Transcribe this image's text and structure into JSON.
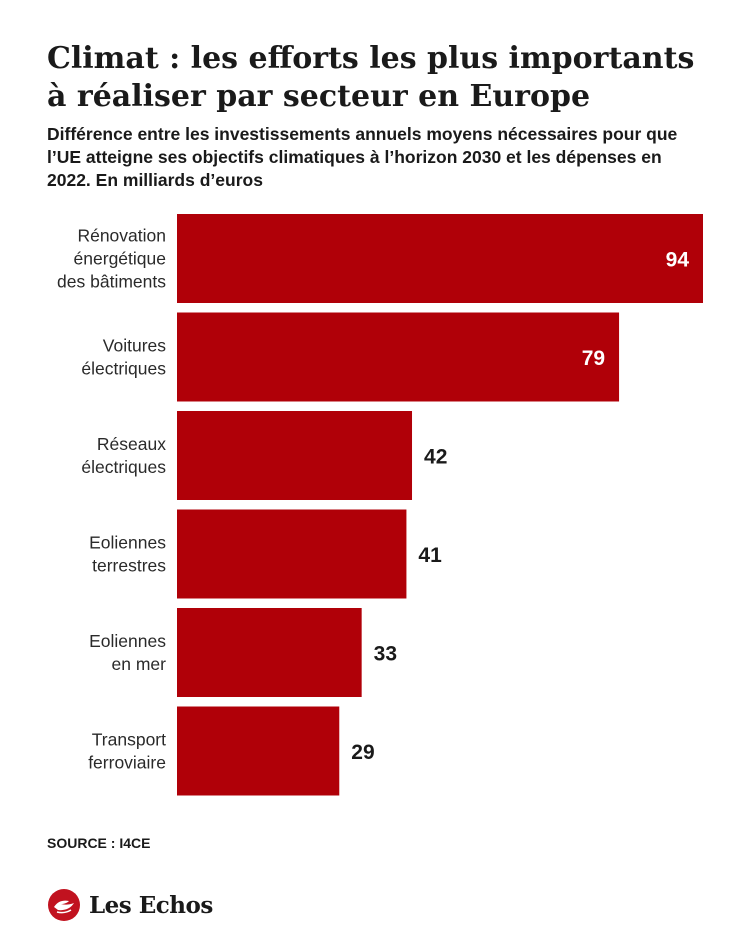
{
  "title": "Climat : les efforts les plus importants à réaliser par secteur en Europe",
  "subtitle": "Différence entre les investissements annuels moyens nécessaires pour que l’UE atteigne ses objectifs climatiques à l’horizon 2030 et les dépenses en 2022.  En milliards d’euros",
  "source": "SOURCE : I4CE",
  "brand": {
    "name": "Les Echos",
    "logo_icon": "les-echos-logo-icon",
    "color": "#c1121f"
  },
  "colors": {
    "bar": "#b00008",
    "label_inside": "#ffffff",
    "label_outside": "#1a1a1a"
  },
  "chart_data": {
    "type": "bar",
    "orientation": "horizontal",
    "title": "Climat : les efforts les plus importants à réaliser par secteur en Europe",
    "subtitle": "Différence entre les investissements annuels moyens nécessaires pour que l’UE atteigne ses objectifs climatiques à l’horizon 2030 et les dépenses en 2022.  En milliards d’euros",
    "categories": [
      [
        "Rénovation",
        "énergétique",
        "des bâtiments"
      ],
      [
        "Voitures",
        "électriques"
      ],
      [
        "Réseaux",
        "électriques"
      ],
      [
        "Eoliennes",
        "terrestres"
      ],
      [
        "Eoliennes",
        "en mer"
      ],
      [
        "Transport",
        "ferroviaire"
      ]
    ],
    "values": [
      94,
      79,
      42,
      41,
      33,
      29
    ],
    "unit": "milliards d’euros",
    "xlim": [
      0,
      94
    ],
    "grid": false,
    "legend": "none"
  }
}
